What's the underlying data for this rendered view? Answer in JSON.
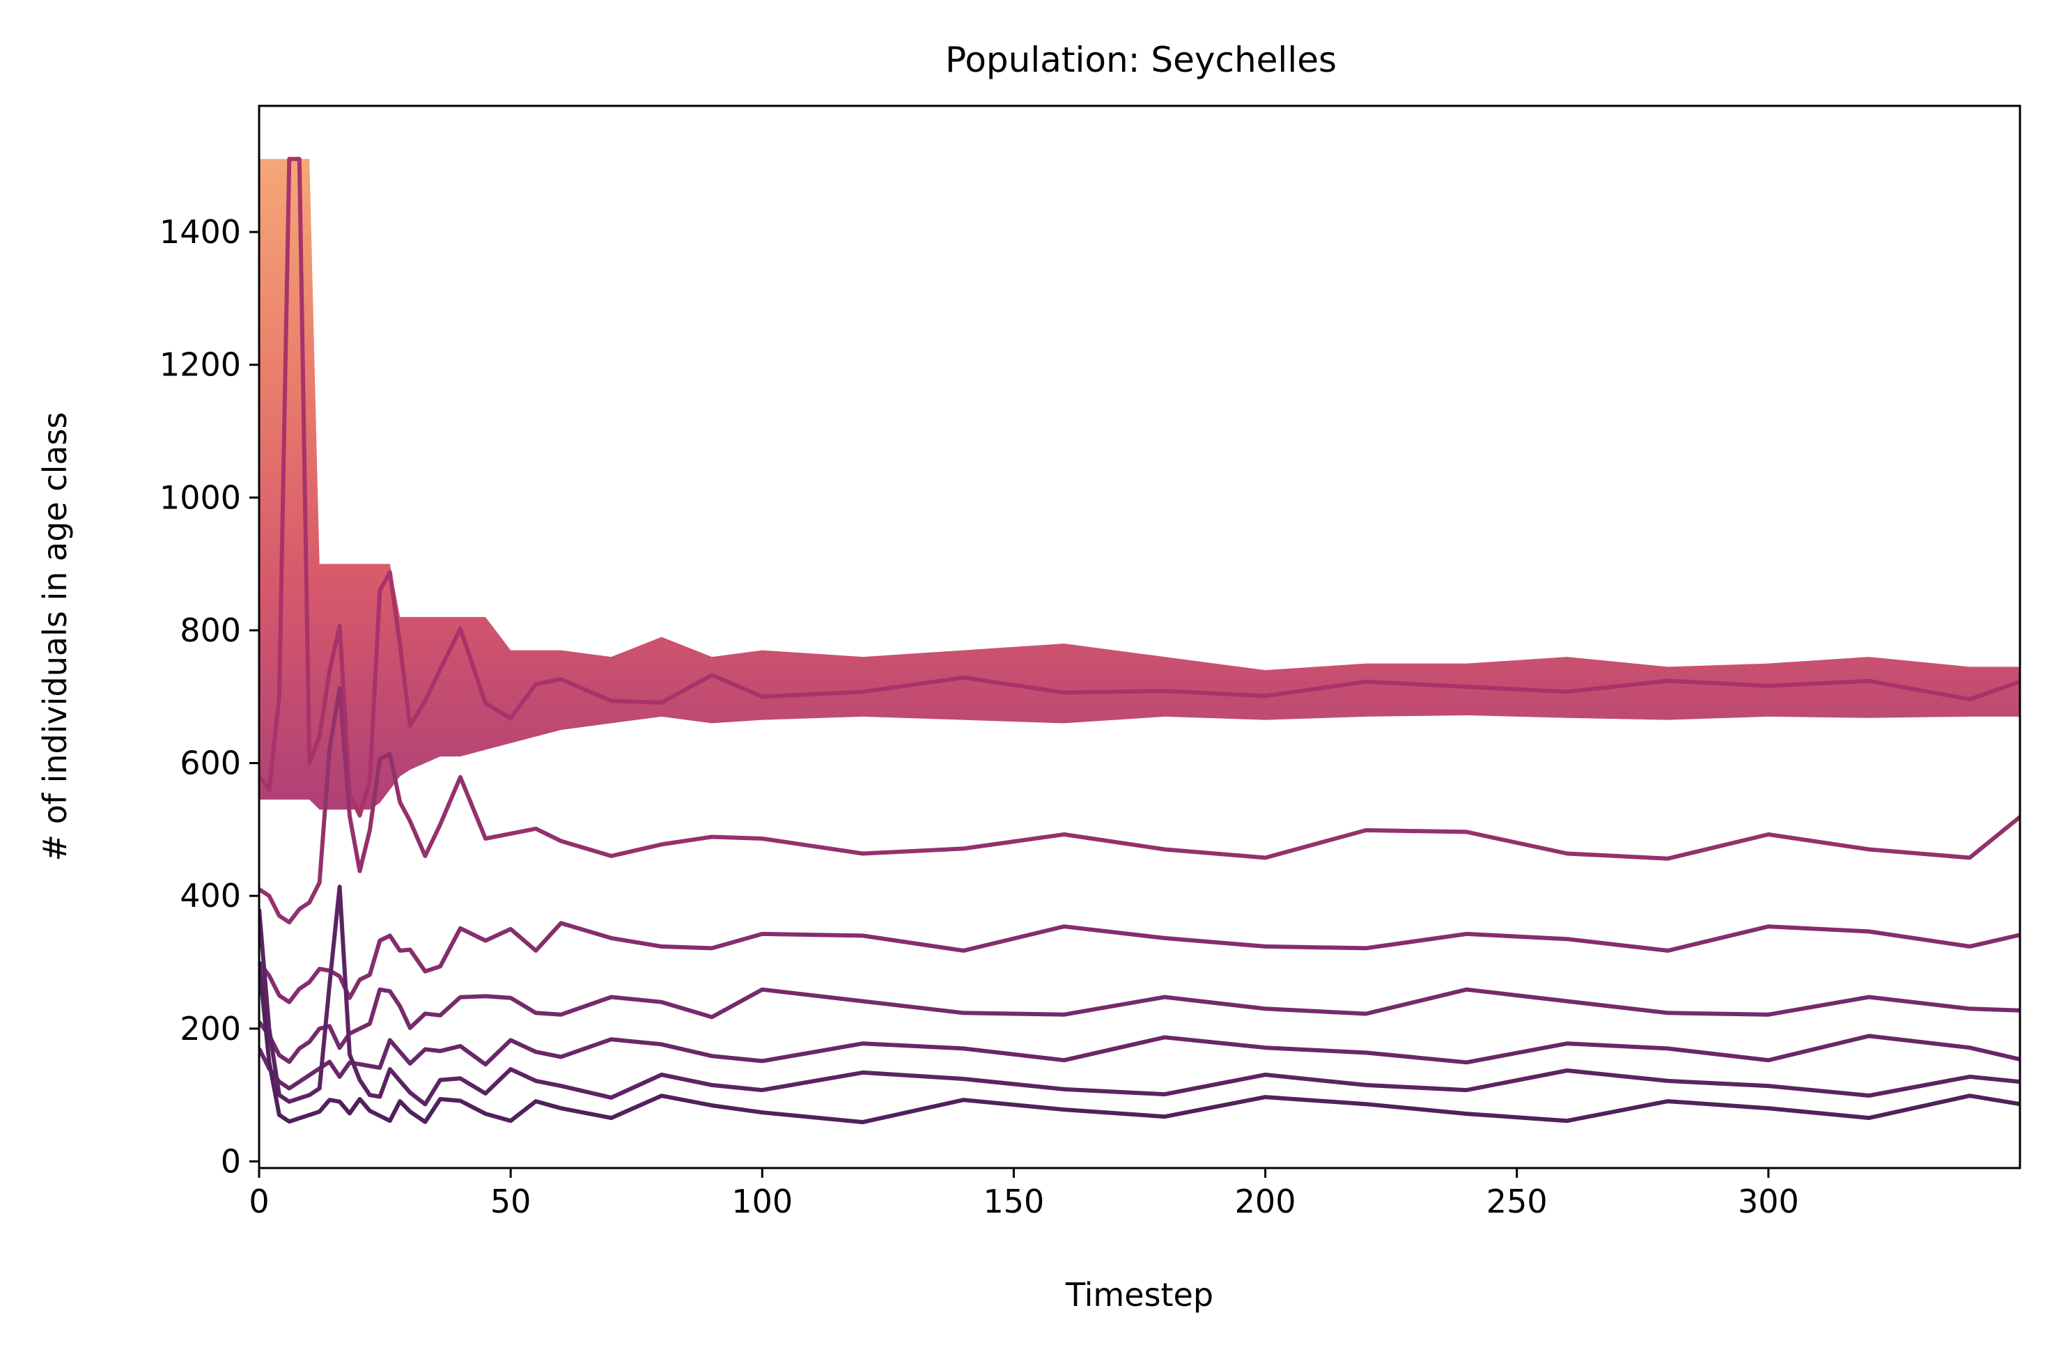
{
  "chart_data": {
    "type": "line",
    "title": "Population: Seychelles",
    "xlabel": "Timestep",
    "ylabel": "# of individuals in age class",
    "xlim": [
      0,
      350
    ],
    "ylim": [
      -10,
      1590
    ],
    "xticks": [
      0,
      50,
      100,
      150,
      200,
      250,
      300
    ],
    "yticks": [
      0,
      200,
      400,
      600,
      800,
      1000,
      1200,
      1400
    ],
    "grid": false,
    "legend": "none",
    "colormap": [
      "#f3a06c",
      "#e8735f",
      "#d2495f",
      "#a7306b",
      "#8a2a6e",
      "#5c1f63"
    ],
    "series": [
      {
        "color": "#a8336a",
        "x": [
          0,
          2,
          4,
          6,
          8,
          10,
          12,
          14,
          16,
          18,
          20,
          22,
          24,
          26,
          28,
          30,
          33,
          36,
          40,
          45,
          50,
          55,
          60,
          70,
          80,
          90,
          100,
          120,
          140,
          160,
          180,
          200,
          220,
          240,
          260,
          280,
          300,
          320,
          340,
          350
        ],
        "values": [
          580,
          560,
          700,
          1510,
          1510,
          600,
          640,
          720,
          800,
          560,
          540,
          560,
          860,
          900,
          760,
          650,
          700,
          760,
          790,
          690,
          680,
          700,
          720,
          700,
          710,
          720,
          700,
          720,
          710,
          700,
          715,
          720,
          710,
          715,
          720,
          705,
          710,
          730,
          715,
          710
        ]
      },
      {
        "color": "#93316c",
        "x": [
          0,
          2,
          4,
          6,
          8,
          10,
          12,
          14,
          16,
          18,
          20,
          22,
          24,
          26,
          28,
          30,
          33,
          36,
          40,
          45,
          50,
          55,
          60,
          70,
          80,
          90,
          100,
          120,
          140,
          160,
          180,
          200,
          220,
          240,
          260,
          280,
          300,
          320,
          340,
          350
        ],
        "values": [
          410,
          400,
          370,
          360,
          380,
          390,
          420,
          640,
          700,
          520,
          450,
          480,
          600,
          620,
          560,
          500,
          460,
          520,
          560,
          480,
          500,
          520,
          470,
          460,
          490,
          470,
          480,
          470,
          490,
          480,
          470,
          470,
          480,
          490,
          470,
          475,
          480,
          470,
          470,
          500
        ]
      },
      {
        "color": "#852d6d",
        "x": [
          0,
          2,
          4,
          6,
          8,
          10,
          12,
          14,
          16,
          18,
          20,
          22,
          24,
          26,
          28,
          30,
          33,
          36,
          40,
          45,
          50,
          55,
          60,
          70,
          80,
          90,
          100,
          120,
          140,
          160,
          180,
          200,
          220,
          240,
          260,
          280,
          300,
          320,
          340,
          350
        ],
        "values": [
          300,
          280,
          250,
          240,
          260,
          270,
          290,
          300,
          260,
          240,
          280,
          300,
          320,
          340,
          330,
          300,
          280,
          300,
          370,
          320,
          350,
          330,
          340,
          330,
          330,
          340,
          330,
          340,
          330,
          335,
          330,
          330,
          340,
          330,
          335,
          330,
          335,
          340,
          330,
          360
        ]
      },
      {
        "color": "#752a6c",
        "x": [
          0,
          2,
          4,
          6,
          8,
          10,
          12,
          14,
          16,
          18,
          20,
          22,
          24,
          26,
          28,
          30,
          33,
          36,
          40,
          45,
          50,
          55,
          60,
          70,
          80,
          90,
          100,
          120,
          140,
          160,
          180,
          200,
          220,
          240,
          260,
          280,
          300,
          320,
          340,
          350
        ],
        "values": [
          210,
          190,
          160,
          150,
          170,
          180,
          200,
          210,
          190,
          180,
          200,
          220,
          240,
          250,
          240,
          220,
          210,
          220,
          260,
          230,
          240,
          230,
          240,
          235,
          240,
          230,
          240,
          235,
          230,
          240,
          235,
          230,
          235,
          240,
          235,
          230,
          240,
          235,
          230,
          240
        ]
      },
      {
        "color": "#692768",
        "x": [
          0,
          2,
          4,
          6,
          8,
          10,
          12,
          14,
          16,
          18,
          20,
          22,
          24,
          26,
          28,
          30,
          33,
          36,
          40,
          45,
          50,
          55,
          60,
          70,
          80,
          90,
          100,
          120,
          140,
          160,
          180,
          200,
          220,
          240,
          260,
          280,
          300,
          320,
          340,
          350
        ],
        "values": [
          170,
          140,
          120,
          110,
          120,
          130,
          140,
          150,
          140,
          130,
          140,
          150,
          160,
          170,
          165,
          160,
          150,
          160,
          180,
          165,
          170,
          165,
          170,
          165,
          170,
          165,
          170,
          165,
          170,
          165,
          168,
          165,
          170,
          168,
          165,
          170,
          165,
          170,
          165,
          160
        ]
      },
      {
        "color": "#5c2363",
        "x": [
          0,
          2,
          4,
          6,
          8,
          10,
          12,
          14,
          16,
          18,
          20,
          22,
          24,
          26,
          28,
          30,
          33,
          36,
          40,
          45,
          50,
          55,
          60,
          70,
          80,
          90,
          100,
          120,
          140,
          160,
          180,
          200,
          220,
          240,
          260,
          280,
          300,
          320,
          340,
          350
        ],
        "values": [
          380,
          200,
          100,
          90,
          95,
          100,
          110,
          260,
          420,
          180,
          110,
          100,
          110,
          120,
          115,
          110,
          105,
          110,
          125,
          115,
          120,
          115,
          120,
          115,
          118,
          115,
          120,
          115,
          118,
          115,
          120,
          118,
          115,
          120,
          118,
          115,
          120,
          118,
          115,
          120
        ]
      },
      {
        "color": "#51205d",
        "x": [
          0,
          2,
          4,
          6,
          8,
          10,
          12,
          14,
          16,
          18,
          20,
          22,
          24,
          26,
          28,
          30,
          33,
          36,
          40,
          45,
          50,
          55,
          60,
          70,
          80,
          90,
          100,
          120,
          140,
          160,
          180,
          200,
          220,
          240,
          260,
          280,
          300,
          320,
          340,
          350
        ],
        "values": [
          300,
          150,
          70,
          60,
          65,
          70,
          75,
          80,
          90,
          85,
          75,
          70,
          75,
          80,
          78,
          75,
          72,
          75,
          85,
          78,
          80,
          78,
          80,
          78,
          80,
          78,
          80,
          78,
          80,
          78,
          80,
          78,
          80,
          78,
          80,
          78,
          80,
          78,
          80,
          80
        ]
      }
    ]
  }
}
